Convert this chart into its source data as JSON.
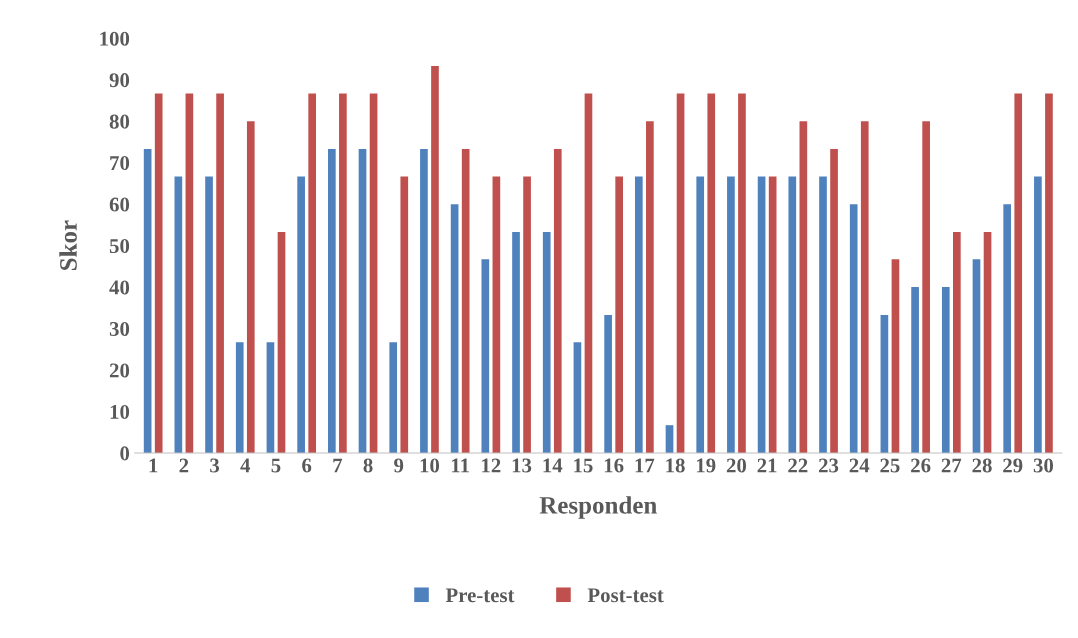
{
  "chart_data": {
    "type": "bar",
    "xlabel": "Responden",
    "ylabel": "Skor",
    "categories": [
      "1",
      "2",
      "3",
      "4",
      "5",
      "6",
      "7",
      "8",
      "9",
      "10",
      "11",
      "12",
      "13",
      "14",
      "15",
      "16",
      "17",
      "18",
      "19",
      "20",
      "21",
      "22",
      "23",
      "24",
      "25",
      "26",
      "27",
      "28",
      "29",
      "30"
    ],
    "series": [
      {
        "name": "Pre-test",
        "color": "#4f81bd",
        "values": [
          73.3,
          66.7,
          66.7,
          26.7,
          26.7,
          66.7,
          73.3,
          73.3,
          26.7,
          73.3,
          60,
          46.7,
          53.3,
          53.3,
          26.7,
          33.3,
          66.7,
          6.7,
          66.7,
          66.7,
          66.7,
          66.7,
          66.7,
          60,
          33.3,
          40,
          40,
          46.7,
          60,
          66.7
        ]
      },
      {
        "name": "Post-test",
        "color": "#c0504d",
        "values": [
          86.7,
          86.7,
          86.7,
          80,
          53.3,
          86.7,
          86.7,
          86.7,
          66.7,
          93.3,
          73.3,
          66.7,
          66.7,
          73.3,
          86.7,
          66.7,
          80,
          86.7,
          86.7,
          86.7,
          66.7,
          80,
          73.3,
          80,
          46.7,
          80,
          53.3,
          53.3,
          86.7,
          86.7
        ]
      }
    ],
    "ylim": [
      0,
      100
    ],
    "yticks": [
      0,
      10,
      20,
      30,
      40,
      50,
      60,
      70,
      80,
      90,
      100
    ],
    "grid": false,
    "legend": "bottom"
  }
}
